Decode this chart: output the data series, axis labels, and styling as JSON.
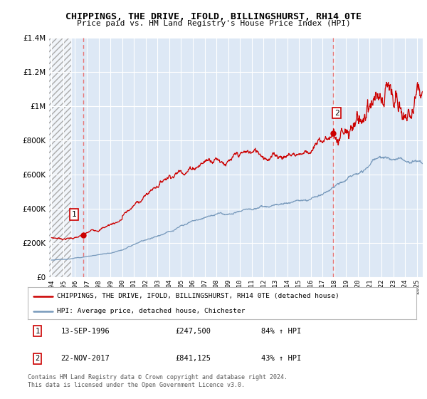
{
  "title": "CHIPPINGS, THE DRIVE, IFOLD, BILLINGSHURST, RH14 0TE",
  "subtitle": "Price paid vs. HM Land Registry's House Price Index (HPI)",
  "red_label": "CHIPPINGS, THE DRIVE, IFOLD, BILLINGSHURST, RH14 0TE (detached house)",
  "blue_label": "HPI: Average price, detached house, Chichester",
  "red_color": "#cc0000",
  "blue_color": "#7799bb",
  "background_plot": "#dde8f5",
  "vline_color": "#e87777",
  "point1_x": 1996.71,
  "point1_y": 247500,
  "point2_x": 2017.9,
  "point2_y": 841125,
  "ylim": [
    0,
    1400000
  ],
  "xlim": [
    1993.8,
    2025.5
  ],
  "hatch_end": 1995.7,
  "footer": "Contains HM Land Registry data © Crown copyright and database right 2024.\nThis data is licensed under the Open Government Licence v3.0."
}
